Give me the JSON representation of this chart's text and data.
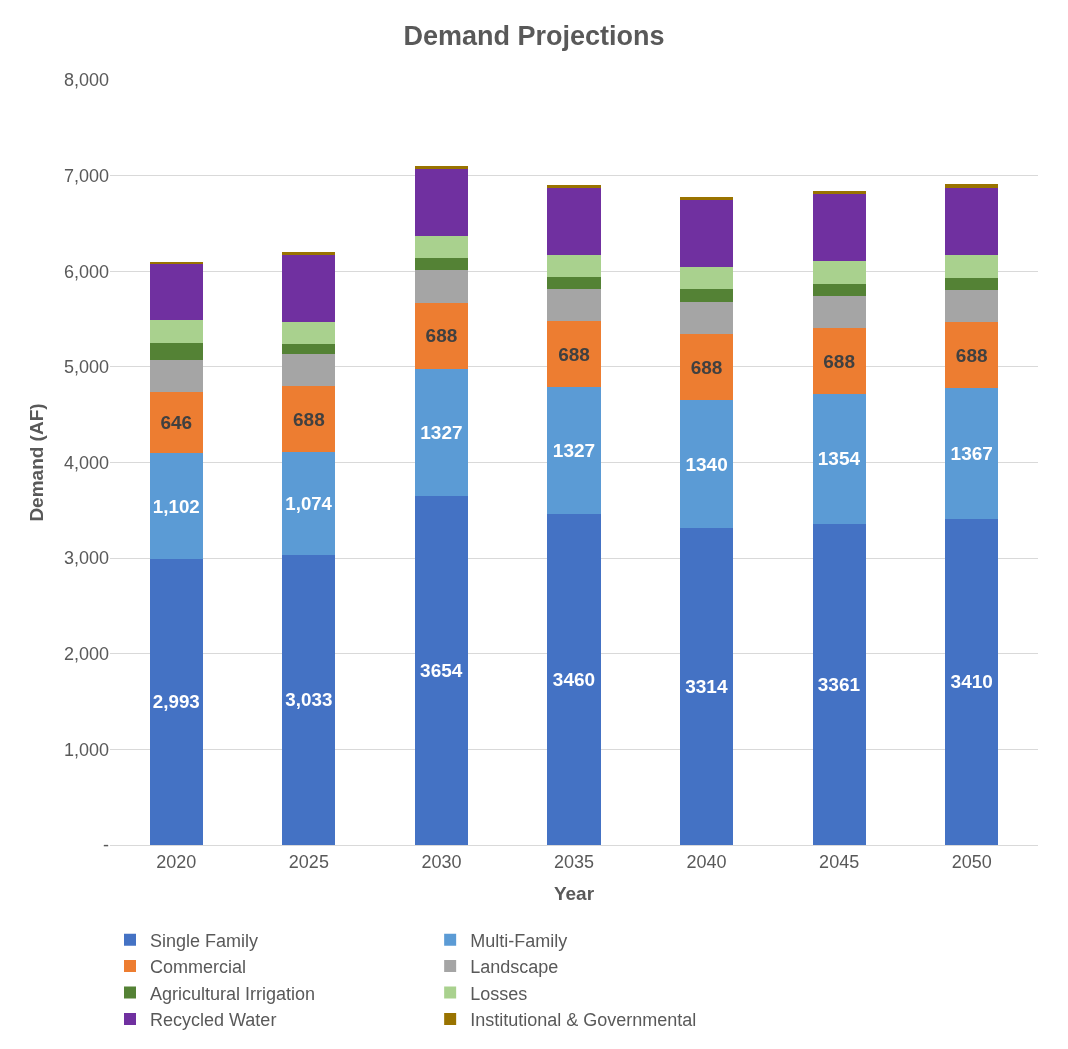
{
  "chart_data": {
    "type": "bar",
    "stacked": true,
    "title": "Demand Projections",
    "xlabel": "Year",
    "ylabel": "Demand (AF)",
    "categories": [
      "2020",
      "2025",
      "2030",
      "2035",
      "2040",
      "2045",
      "2050"
    ],
    "ylim": [
      0,
      8000
    ],
    "yticks": [
      {
        "value": 0,
        "label": "-"
      },
      {
        "value": 1000,
        "label": "1,000"
      },
      {
        "value": 2000,
        "label": "2,000"
      },
      {
        "value": 3000,
        "label": "3,000"
      },
      {
        "value": 4000,
        "label": "4,000"
      },
      {
        "value": 5000,
        "label": "5,000"
      },
      {
        "value": 6000,
        "label": "6,000"
      },
      {
        "value": 7000,
        "label": "7,000"
      },
      {
        "value": 8000,
        "label": "8,000"
      }
    ],
    "grid": "y",
    "legend": "bottom",
    "series": [
      {
        "name": "Single Family",
        "color": "#4472c4",
        "values": [
          2993,
          3033,
          3654,
          3460,
          3314,
          3361,
          3410
        ],
        "value_labels": [
          "2,993",
          "3,033",
          "3654",
          "3460",
          "3314",
          "3361",
          "3410"
        ]
      },
      {
        "name": "Multi-Family",
        "color": "#5b9bd5",
        "values": [
          1102,
          1074,
          1327,
          1327,
          1340,
          1354,
          1367
        ],
        "value_labels": [
          "1,102",
          "1,074",
          "1327",
          "1327",
          "1340",
          "1354",
          "1367"
        ]
      },
      {
        "name": "Commercial",
        "color": "#ed7d31",
        "values": [
          646,
          688,
          688,
          688,
          688,
          688,
          688
        ],
        "value_labels": [
          "646",
          "688",
          "688",
          "688",
          "688",
          "688",
          "688"
        ]
      },
      {
        "name": "Landscape",
        "color": "#a5a5a5",
        "values": [
          330,
          335,
          340,
          340,
          340,
          340,
          340
        ]
      },
      {
        "name": "Agricultural Irrigation",
        "color": "#548235",
        "values": [
          180,
          105,
          130,
          120,
          130,
          125,
          125
        ]
      },
      {
        "name": "Losses",
        "color": "#a9d18e",
        "values": [
          240,
          235,
          230,
          235,
          235,
          240,
          240
        ]
      },
      {
        "name": "Recycled Water",
        "color": "#7030a0",
        "values": [
          580,
          700,
          700,
          705,
          695,
          695,
          705
        ]
      },
      {
        "name": "Institutional & Governmental",
        "color": "#997300",
        "values": [
          25,
          35,
          30,
          30,
          35,
          35,
          35
        ]
      }
    ]
  }
}
